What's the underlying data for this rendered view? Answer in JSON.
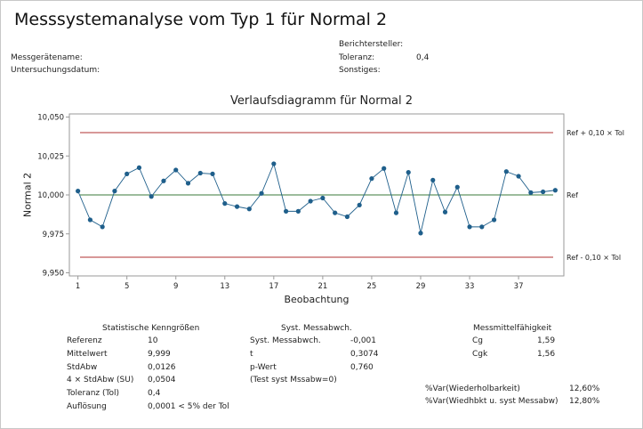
{
  "title": "Messsystemanalyse vom Typ 1 für Normal 2",
  "header": {
    "left": [
      {
        "label": "Messgerätename:",
        "value": ""
      },
      {
        "label": "Untersuchungsdatum:",
        "value": ""
      }
    ],
    "right": [
      {
        "label": "Berichtersteller:",
        "value": ""
      },
      {
        "label": "Toleranz:",
        "value": "0,4"
      },
      {
        "label": "Sonstiges:",
        "value": ""
      }
    ]
  },
  "chart_data": {
    "type": "line",
    "title": "Verlaufsdiagramm für Normal 2",
    "xlabel": "Beobachtung",
    "ylabel": "Normal 2",
    "x": [
      1,
      2,
      3,
      4,
      5,
      6,
      7,
      8,
      9,
      10,
      11,
      12,
      13,
      14,
      15,
      16,
      17,
      18,
      19,
      20,
      21,
      22,
      23,
      24,
      25,
      26,
      27,
      28,
      29,
      30,
      31,
      32,
      33,
      34,
      35,
      36,
      37,
      38,
      39,
      40
    ],
    "series": [
      {
        "values": [
          10.0025,
          9.984,
          9.9795,
          10.0025,
          10.0135,
          10.0175,
          9.999,
          10.009,
          10.016,
          10.0075,
          10.014,
          10.0135,
          9.9945,
          9.9925,
          9.991,
          10.001,
          10.02,
          9.9895,
          9.9895,
          9.996,
          9.998,
          9.9885,
          9.986,
          9.9935,
          10.0105,
          10.017,
          9.9885,
          10.0145,
          9.9755,
          10.0095,
          9.989,
          10.005,
          9.9795,
          9.9795,
          9.984,
          10.015,
          10.012,
          10.0015,
          10.002,
          10.003
        ],
        "color": "#1f5f8b"
      }
    ],
    "xticks": [
      1,
      5,
      9,
      13,
      17,
      21,
      25,
      29,
      33,
      37
    ],
    "xlim": [
      0.3,
      40.7
    ],
    "ylim": [
      9.948,
      10.052
    ],
    "yticks": [
      9.95,
      9.975,
      10.0,
      10.025,
      10.05
    ],
    "ytick_labels": [
      "9,950",
      "9,975",
      "10,000",
      "10,025",
      "10,050"
    ],
    "reference_lines": [
      {
        "label": "Ref + 0,10 × Tol",
        "value": 10.04,
        "color": "#b03030"
      },
      {
        "label": "Ref",
        "value": 10.0,
        "color": "#3a7a3a"
      },
      {
        "label": "Ref - 0,10 × Tol",
        "value": 9.96,
        "color": "#b03030"
      }
    ],
    "grid": false
  },
  "stats": {
    "heading": "Statistische Kenngrößen",
    "rows": [
      {
        "label": "Referenz",
        "value": "10"
      },
      {
        "label": "Mittelwert",
        "value": "9,999"
      },
      {
        "label": "StdAbw",
        "value": "0,0126"
      },
      {
        "label": "4 × StdAbw (SU)",
        "value": "0,0504"
      },
      {
        "label": "Toleranz (Tol)",
        "value": "0,4"
      },
      {
        "label": "Auflösung",
        "value": "0,0001  < 5% der Tol"
      }
    ]
  },
  "bias": {
    "heading": "Syst. Messabwch.",
    "rows": [
      {
        "label": "Syst. Messabwch.",
        "value": "-0,001"
      },
      {
        "label": "t",
        "value": "0,3074"
      },
      {
        "label": "p-Wert",
        "value": "0,760"
      },
      {
        "label": "(Test syst Mssabw=0)",
        "value": ""
      }
    ]
  },
  "capability": {
    "heading": "Messmittelfähigkeit",
    "rows": [
      {
        "label": "Cg",
        "value": "1,59"
      },
      {
        "label": "Cgk",
        "value": "1,56"
      }
    ],
    "var_rows": [
      {
        "label": "%Var(Wiederholbarkeit)",
        "value": "12,60%"
      },
      {
        "label": "%Var(Wiedhbkt u. syst Messabw)",
        "value": "12,80%"
      }
    ]
  }
}
